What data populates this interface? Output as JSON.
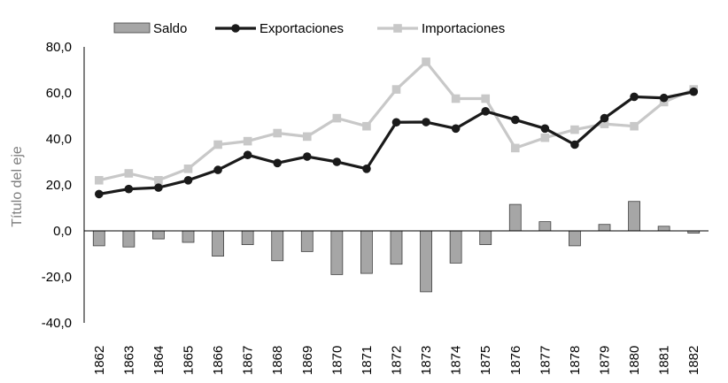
{
  "chart_data": {
    "type": "bar",
    "ylabel": "Título del eje",
    "xlabel": "",
    "ylim": [
      -40,
      80
    ],
    "yticks": [
      "-40,0",
      "-20,0",
      "0,0",
      "20,0",
      "40,0",
      "60,0",
      "80,0"
    ],
    "legend_position": "top",
    "grid": false,
    "categories": [
      "1862",
      "1863",
      "1864",
      "1865",
      "1866",
      "1867",
      "1868",
      "1869",
      "1870",
      "1871",
      "1872",
      "1873",
      "1874",
      "1875",
      "1876",
      "1877",
      "1878",
      "1879",
      "1880",
      "1881",
      "1882"
    ],
    "series": [
      {
        "name": "Saldo",
        "kind": "bar",
        "color": "#a6a6a6",
        "values": [
          -6.5,
          -7.0,
          -3.5,
          -5.0,
          -11.0,
          -6.0,
          -13.0,
          -9.0,
          -19.0,
          -18.5,
          -14.5,
          -26.5,
          -14.0,
          -6.0,
          11.5,
          4.0,
          -6.5,
          2.8,
          12.8,
          2.0,
          -1.0
        ]
      },
      {
        "name": "Exportaciones",
        "kind": "line",
        "color": "#1a1a1a",
        "values": [
          16.0,
          18.2,
          18.8,
          22.0,
          26.5,
          33.0,
          29.5,
          32.3,
          30.0,
          27.0,
          47.2,
          47.3,
          44.5,
          52.0,
          48.3,
          44.5,
          37.5,
          49.0,
          58.3,
          57.8,
          60.5
        ]
      },
      {
        "name": "Importaciones",
        "kind": "line",
        "color": "#c8c8c8",
        "values": [
          22.0,
          25.0,
          22.0,
          27.0,
          37.5,
          39.0,
          42.5,
          41.0,
          49.0,
          45.5,
          61.5,
          73.5,
          57.5,
          57.5,
          36.0,
          40.5,
          44.0,
          46.5,
          45.5,
          56.0,
          61.5
        ]
      }
    ]
  }
}
